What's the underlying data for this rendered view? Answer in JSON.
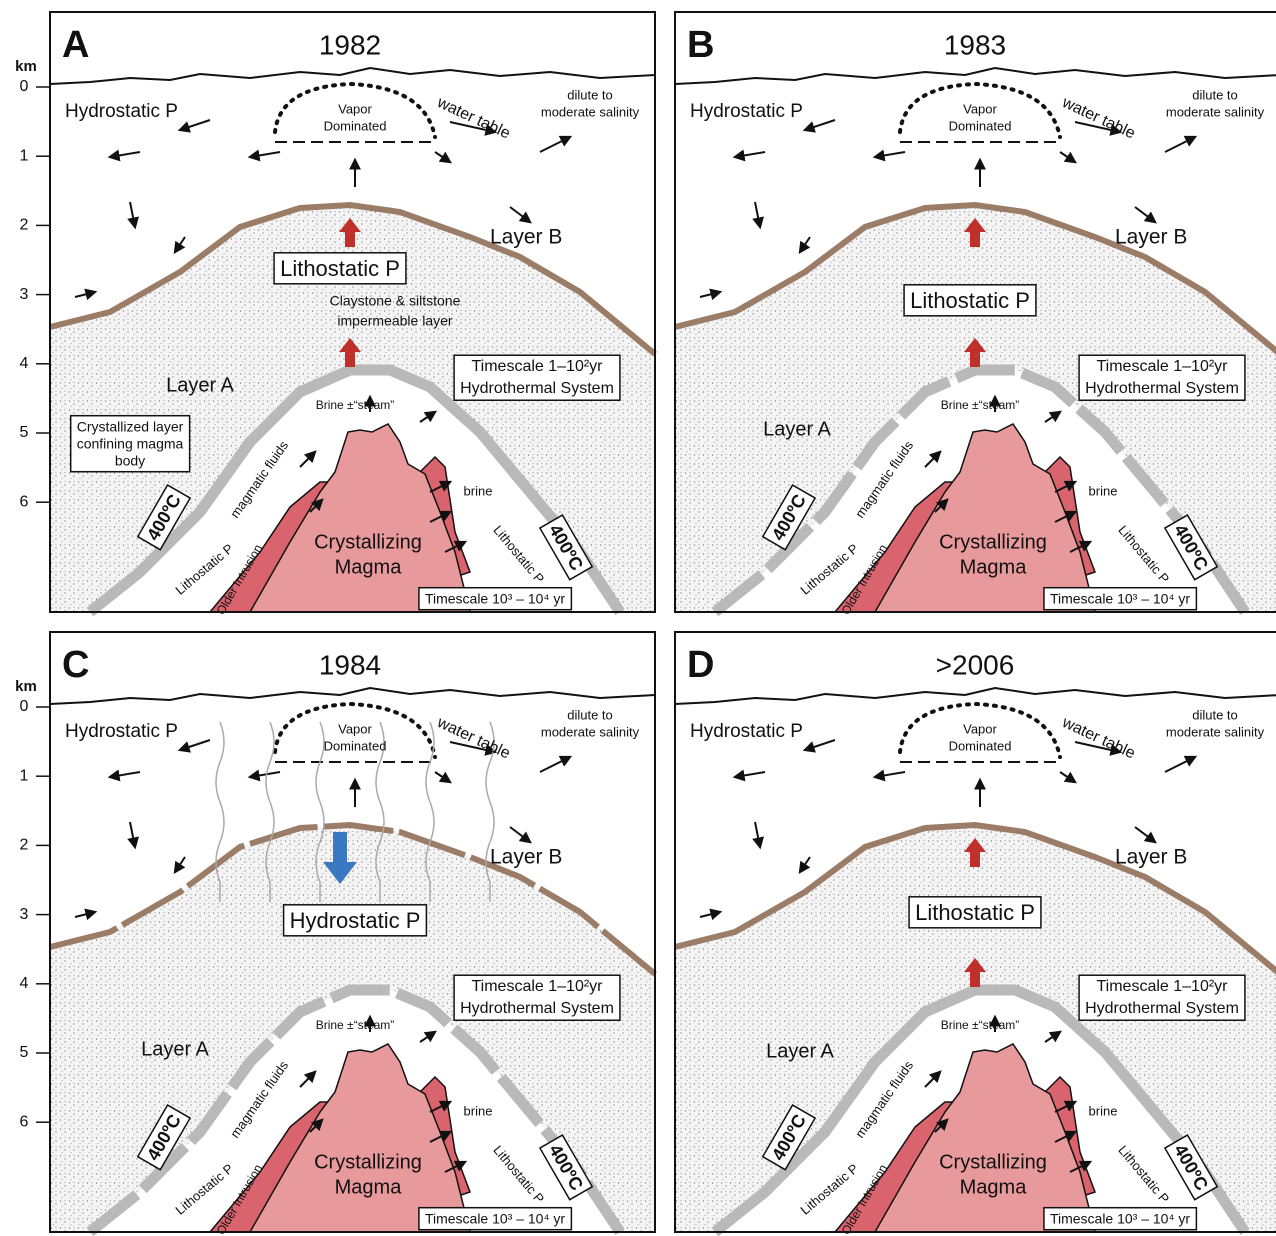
{
  "depth_axis": {
    "unit": "km",
    "ticks": [
      0,
      1,
      2,
      3,
      4,
      5,
      6
    ]
  },
  "panels": [
    {
      "letter": "A",
      "year": "1982",
      "hydrostatic": "Hydrostatic P",
      "vapor": [
        "Vapor",
        "Dominated"
      ],
      "water_table": "water table",
      "salinity": [
        "dilute to",
        "moderate salinity"
      ],
      "layer_b": "Layer B",
      "pressure_box": "Lithostatic P",
      "claystone": [
        "Claystone & siltstone",
        "impermeable layer"
      ],
      "layer_a": "Layer A",
      "timescale_hydro": [
        "Timescale 1–10²yr",
        "Hydrothermal System"
      ],
      "brine_steam": "Brine ±“steam”",
      "crystallized": [
        "Crystallized layer",
        "confining magma",
        "body"
      ],
      "magmatic_fluids": "magmatic fluids",
      "brine": "brine",
      "temp_left": "400ºC",
      "temp_right": "400ºC",
      "litho_left": "Lithostatic P",
      "litho_right": "Lithostatic P",
      "older_intrusion": "Older Intrusion",
      "magma": [
        "Crystallizing",
        "Magma"
      ],
      "timescale_magma": "Timescale 10³ – 10⁴ yr"
    },
    {
      "letter": "B",
      "year": "1983",
      "hydrostatic": "Hydrostatic P",
      "vapor": [
        "Vapor",
        "Dominated"
      ],
      "water_table": "water table",
      "salinity": [
        "dilute to",
        "moderate salinity"
      ],
      "layer_b": "Layer B",
      "pressure_box": "Lithostatic P",
      "layer_a": "Layer A",
      "timescale_hydro": [
        "Timescale 1–10²yr",
        "Hydrothermal System"
      ],
      "brine_steam": "Brine ±“steam”",
      "magmatic_fluids": "magmatic fluids",
      "brine": "brine",
      "temp_left": "400ºC",
      "temp_right": "400ºC",
      "litho_left": "Lithostatic P",
      "litho_right": "Lithostatic P",
      "older_intrusion": "Older Intrusion",
      "magma": [
        "Crystallizing",
        "Magma"
      ],
      "timescale_magma": "Timescale 10³ – 10⁴ yr"
    },
    {
      "letter": "C",
      "year": "1984",
      "hydrostatic": "Hydrostatic P",
      "vapor": [
        "Vapor",
        "Dominated"
      ],
      "water_table": "water table",
      "salinity": [
        "dilute to",
        "moderate salinity"
      ],
      "layer_b": "Layer B",
      "pressure_box": "Hydrostatic P",
      "layer_a": "Layer A",
      "timescale_hydro": [
        "Timescale 1–10²yr",
        "Hydrothermal System"
      ],
      "brine_steam": "Brine ±“steam”",
      "magmatic_fluids": "magmatic fluids",
      "brine": "brine",
      "temp_left": "400ºC",
      "temp_right": "400ºC",
      "litho_left": "Lithostatic P",
      "litho_right": "Lithostatic P",
      "older_intrusion": "Older Intrusion",
      "magma": [
        "Crystallizing",
        "Magma"
      ],
      "timescale_magma": "Timescale 10³ – 10⁴ yr"
    },
    {
      "letter": "D",
      "year": ">2006",
      "hydrostatic": "Hydrostatic P",
      "vapor": [
        "Vapor",
        "Dominated"
      ],
      "water_table": "water table",
      "salinity": [
        "dilute to",
        "moderate salinity"
      ],
      "layer_b": "Layer B",
      "pressure_box": "Lithostatic P",
      "layer_a": "Layer A",
      "timescale_hydro": [
        "Timescale 1–10²yr",
        "Hydrothermal System"
      ],
      "brine_steam": "Brine ±“steam”",
      "magmatic_fluids": "magmatic fluids",
      "brine": "brine",
      "temp_left": "400ºC",
      "temp_right": "400ºC",
      "litho_left": "Lithostatic P",
      "litho_right": "Lithostatic P",
      "older_intrusion": "Older Intrusion",
      "magma": [
        "Crystallizing",
        "Magma"
      ],
      "timescale_magma": "Timescale 10³ – 10⁴ yr"
    }
  ]
}
